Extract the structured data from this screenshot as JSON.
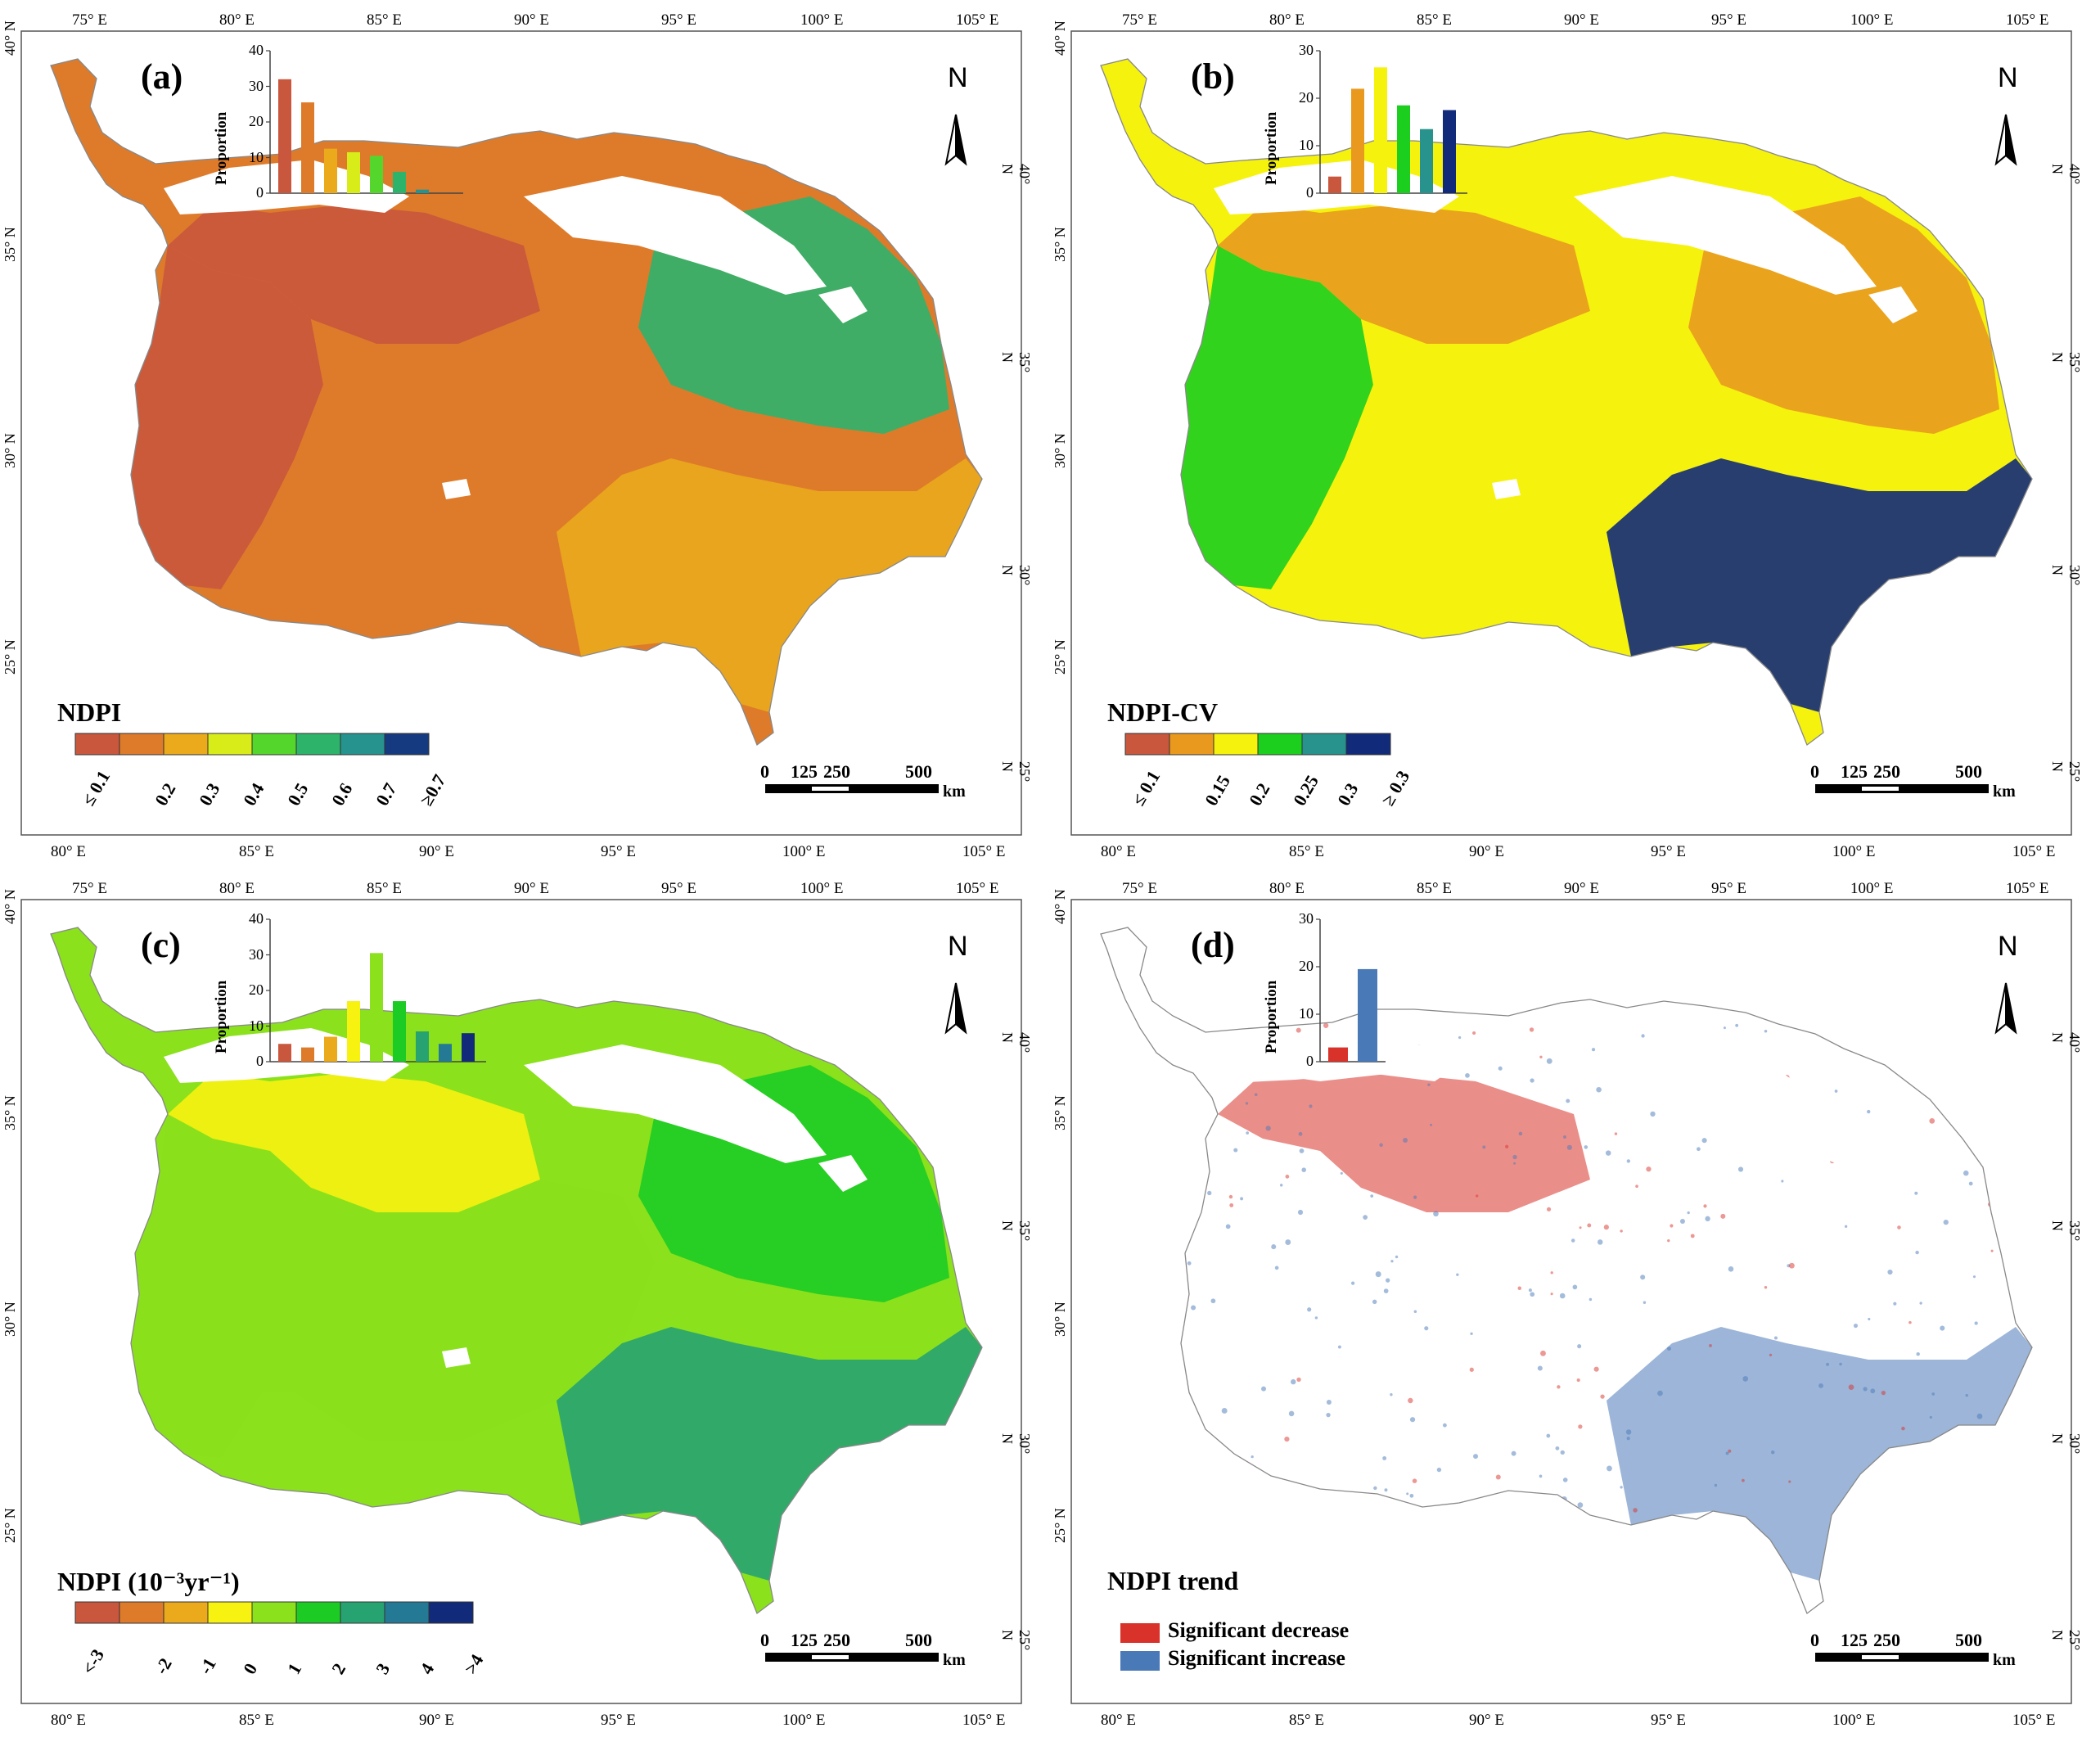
{
  "axes": {
    "top_lon": [
      "75° E",
      "80° E",
      "85° E",
      "90° E",
      "95° E",
      "100° E",
      "105° E"
    ],
    "bottom_lon": [
      "80° E",
      "85° E",
      "90° E",
      "95° E",
      "100° E",
      "105° E"
    ],
    "left_lat": [
      "40° N",
      "35° N",
      "30° N",
      "25° N"
    ],
    "right_lat": [
      "40° N",
      "35° N",
      "30° N",
      "25° N"
    ]
  },
  "north_label": "N",
  "scale_bar": {
    "ticks": [
      "0",
      "125",
      "250",
      "500"
    ],
    "unit": "km"
  },
  "hist_ylabel": "Proportion",
  "panels": [
    {
      "label": "(a)",
      "legend_title": "NDPI",
      "legend_type": "colorbar",
      "classes": [
        "≤ 0.1",
        "0.2",
        "0.3",
        "0.4",
        "0.5",
        "0.6",
        "0.7",
        "≥0.7"
      ],
      "colors": [
        "#c9573d",
        "#de7b2b",
        "#eaaa1c",
        "#d7ec18",
        "#55d62c",
        "#2eb36b",
        "#26938e",
        "#163a80"
      ],
      "chart_data": {
        "type": "bar",
        "title": "",
        "ylabel": "Proportion",
        "ylim": [
          0,
          40
        ],
        "yticks": [
          "0",
          "10",
          "20",
          "30",
          "40"
        ],
        "categories": [
          "≤ 0.1",
          "0.2",
          "0.3",
          "0.4",
          "0.5",
          "0.6",
          "0.7",
          "≥0.7"
        ],
        "values": [
          32,
          25.5,
          12.5,
          11.5,
          10.5,
          6,
          1,
          0
        ]
      }
    },
    {
      "label": "(b)",
      "legend_title": "NDPI-CV",
      "legend_type": "colorbar",
      "classes": [
        "≤ 0.1",
        "0.15",
        "0.2",
        "0.25",
        "0.3",
        "≥ 0.3"
      ],
      "colors": [
        "#c9573d",
        "#e99a1e",
        "#f5f20e",
        "#1ccf1e",
        "#27938c",
        "#122a7a"
      ],
      "chart_data": {
        "type": "bar",
        "title": "",
        "ylabel": "Proportion",
        "ylim": [
          0,
          30
        ],
        "yticks": [
          "0",
          "10",
          "20",
          "30"
        ],
        "categories": [
          "≤ 0.1",
          "0.15",
          "0.2",
          "0.25",
          "0.3",
          "≥ 0.3"
        ],
        "values": [
          3.5,
          22,
          26.5,
          18.5,
          13.5,
          17.5
        ]
      }
    },
    {
      "label": "(c)",
      "legend_title": "NDPI (10⁻³yr⁻¹)",
      "legend_type": "colorbar",
      "classes": [
        "<-3",
        "-2",
        "-1",
        "0",
        "1",
        "2",
        "3",
        "4",
        ">4"
      ],
      "colors": [
        "#c9573d",
        "#de7b2b",
        "#eaaa1c",
        "#f7f20f",
        "#8ae11c",
        "#1ccc25",
        "#27a372",
        "#247a95",
        "#122a7a"
      ],
      "chart_data": {
        "type": "bar",
        "title": "",
        "ylabel": "Proportion",
        "ylim": [
          0,
          40
        ],
        "yticks": [
          "0",
          "10",
          "20",
          "30",
          "40"
        ],
        "categories": [
          "<-3",
          "-2",
          "-1",
          "0",
          "1",
          "2",
          "3",
          "4",
          ">4"
        ],
        "values": [
          5,
          4,
          7,
          17,
          30.5,
          17,
          8.5,
          5,
          8
        ]
      }
    },
    {
      "label": "(d)",
      "legend_title": "NDPI trend",
      "legend_type": "categorical",
      "classes": [
        "Significant decrease",
        "Significant increase"
      ],
      "colors": [
        "#d9322a",
        "#4a79b8"
      ],
      "chart_data": {
        "type": "bar",
        "title": "",
        "ylabel": "Proportion",
        "ylim": [
          0,
          30
        ],
        "yticks": [
          "0",
          "10",
          "20",
          "30"
        ],
        "categories": [
          "Significant decrease",
          "Significant increase"
        ],
        "values": [
          3,
          19.5
        ]
      }
    }
  ]
}
